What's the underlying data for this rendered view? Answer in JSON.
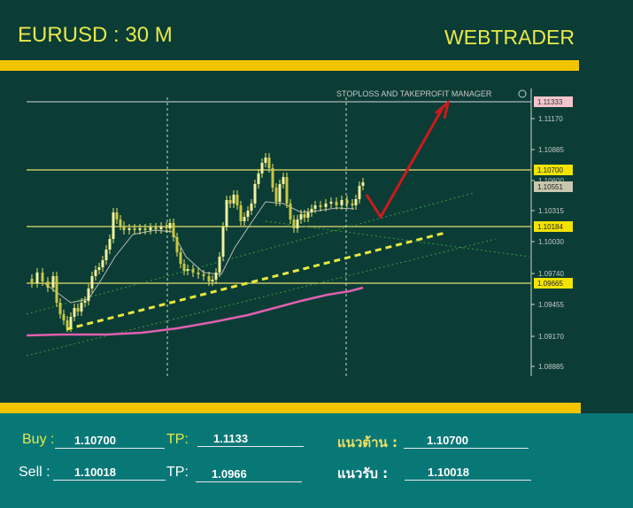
{
  "header": {
    "title": "EURUSD : 30 M",
    "brand": "WEBTRADER"
  },
  "chart": {
    "manager_label": "STOPLOSS AND TAKEPROFIT MANAGER",
    "price_axis": [
      "1.11170",
      "1.10885",
      "1.10600",
      "1.10315",
      "1.10030",
      "1.09740",
      "1.09455",
      "1.09170",
      "1.08885"
    ],
    "level_tags": [
      {
        "label": "1.11333",
        "bg": "#f4c4cc",
        "fg": "#333333"
      },
      {
        "label": "1.10700",
        "bg": "#f2e400",
        "fg": "#222222"
      },
      {
        "label": "1.10551",
        "bg": "#c8c8b0",
        "fg": "#222222"
      },
      {
        "label": "1.10184",
        "bg": "#f2e400",
        "fg": "#222222"
      },
      {
        "label": "1.09665",
        "bg": "#f2e400",
        "fg": "#222222"
      }
    ],
    "colors": {
      "background": "#0b3d36",
      "level_line": "#e8e070",
      "tp_line": "#d8d8d8",
      "moving_avg": "#e060b0",
      "trend_dash": "#e8e840",
      "arrow": "#d01818",
      "candle": "#e8e860"
    }
  },
  "form": {
    "buy_label": "Buy :",
    "buy_value": "1.10700",
    "buy_tp_label": "TP:",
    "buy_tp_value": "1.1133",
    "resistance_label": "แนวต้าน :",
    "resistance_value": "1.10700",
    "sell_label": "Sell :",
    "sell_value": "1.10018",
    "sell_tp_label": "TP:",
    "sell_tp_value": "1.0966",
    "support_label": "แนวรับ  :",
    "support_value": "1.10018"
  }
}
